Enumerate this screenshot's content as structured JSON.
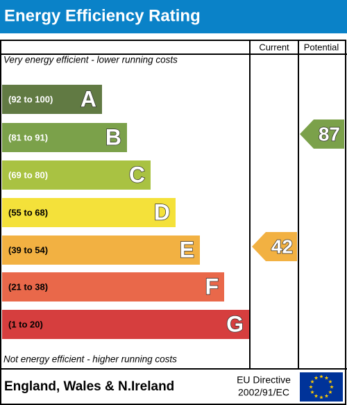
{
  "header": {
    "title": "Energy Efficiency Rating"
  },
  "columns": {
    "current": "Current",
    "potential": "Potential"
  },
  "top_note": "Very energy efficient - lower running costs",
  "bands": [
    {
      "range": "(92 to 100)",
      "letter": "A"
    },
    {
      "range": "(81 to 91)",
      "letter": "B"
    },
    {
      "range": "(69 to 80)",
      "letter": "C"
    },
    {
      "range": "(55 to 68)",
      "letter": "D"
    },
    {
      "range": "(39 to 54)",
      "letter": "E"
    },
    {
      "range": "(21 to 38)",
      "letter": "F"
    },
    {
      "range": "(1 to 20)",
      "letter": "G"
    }
  ],
  "bottom_note": "Not energy efficient - higher running costs",
  "current": 42,
  "potential": 87,
  "footer": {
    "region": "England, Wales & N.Ireland",
    "directive": [
      "EU Directive",
      "2002/91/EC"
    ]
  }
}
